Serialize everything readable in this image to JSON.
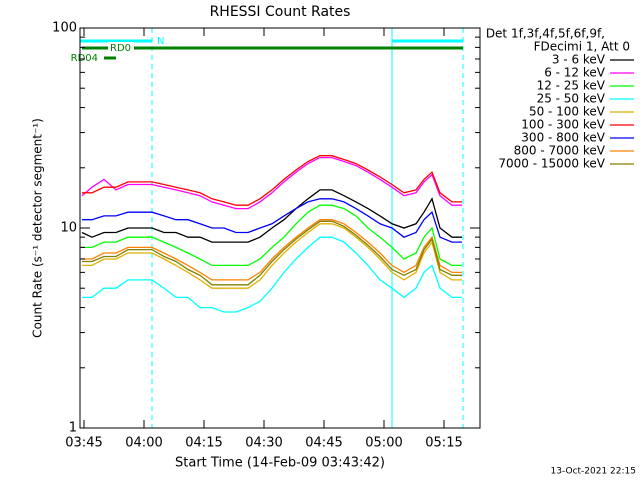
{
  "chart_data": {
    "type": "line",
    "title": "RHESSI Count Rates",
    "xlabel": "Start Time (14-Feb-09 03:43:42)",
    "ylabel": "Count Rate (s⁻¹ detector segment⁻¹)",
    "legend_title": [
      "Det 1f,3f,4f,5f,6f,9f,",
      "FDecimi 1, Att 0"
    ],
    "legend": "outside-right",
    "footer": "13-Oct-2021 22:15",
    "ylog": true,
    "xlim": [
      224,
      324
    ],
    "ylim": [
      1,
      100
    ],
    "yticks": [
      1,
      10,
      100
    ],
    "yminorticks": [
      2,
      3,
      4,
      5,
      6,
      7,
      8,
      9,
      20,
      30,
      40,
      50,
      60,
      70,
      80,
      90
    ],
    "xticks": [
      {
        "value": 225,
        "label": "03:45"
      },
      {
        "value": 240,
        "label": "04:00"
      },
      {
        "value": 255,
        "label": "04:15"
      },
      {
        "value": 270,
        "label": "04:30"
      },
      {
        "value": 285,
        "label": "04:45"
      },
      {
        "value": 300,
        "label": "05:00"
      },
      {
        "value": 315,
        "label": "05:15"
      }
    ],
    "x": [
      224.5,
      227,
      230,
      233,
      236,
      239,
      242,
      245,
      248,
      251,
      254,
      257,
      260,
      263,
      266,
      269,
      272,
      275,
      278,
      281,
      284,
      287,
      290,
      293,
      296,
      299,
      302,
      305,
      308,
      310,
      312,
      314,
      317,
      319.5
    ],
    "flags": [
      {
        "label": "N",
        "start": 224,
        "end": 242,
        "color": "#00ffff",
        "night": true
      },
      {
        "start": 302,
        "end": 319.75,
        "color": "#00ffff",
        "night": true
      },
      {
        "label": "RD0",
        "start": 224.5,
        "end": 319.75,
        "color": "#008000"
      },
      {
        "label": "RD04",
        "start": 230,
        "end": 233,
        "color": "#008000"
      }
    ],
    "series": [
      {
        "name": "3 - 6 keV",
        "color": "#000000",
        "values": [
          9.5,
          9,
          9.5,
          9.5,
          10,
          10,
          10,
          9.5,
          9.5,
          9,
          9,
          8.5,
          8.5,
          8.5,
          8.5,
          9,
          10,
          11,
          12.5,
          14,
          15.5,
          15.5,
          14.5,
          13.5,
          12.5,
          11.5,
          10.5,
          10,
          10.5,
          12,
          14,
          10,
          9,
          9
        ]
      },
      {
        "name": "6 - 12 keV",
        "color": "#ff00ff",
        "values": [
          14.5,
          16,
          17.5,
          15.5,
          16.5,
          16.5,
          16.5,
          16,
          15.5,
          15,
          14.5,
          13.5,
          13,
          12.5,
          12.5,
          13.5,
          15,
          17,
          19,
          21,
          22.5,
          22.5,
          21.5,
          20.5,
          19,
          17.5,
          16,
          14.5,
          15,
          17,
          18.5,
          14.5,
          13,
          13
        ]
      },
      {
        "name": "12 - 25 keV",
        "color": "#00ff00",
        "values": [
          8,
          8,
          8.5,
          8.5,
          9,
          9,
          9,
          8.5,
          8,
          7.5,
          7,
          6.5,
          6.5,
          6.5,
          6.5,
          7,
          8,
          9,
          10.5,
          12,
          13,
          13,
          12.5,
          11.5,
          10,
          9,
          8,
          7,
          7.5,
          9,
          10,
          7,
          6.5,
          6.5
        ]
      },
      {
        "name": "25 - 50 keV",
        "color": "#00ffff",
        "values": [
          4.5,
          4.5,
          5,
          5,
          5.5,
          5.5,
          5.5,
          5,
          4.5,
          4.5,
          4,
          4,
          3.8,
          3.8,
          4,
          4.3,
          5,
          6,
          7,
          8,
          9,
          9,
          8.5,
          7.5,
          6.5,
          5.5,
          5,
          4.5,
          5,
          6,
          6.5,
          5,
          4.5,
          4.5
        ]
      },
      {
        "name": "50 - 100 keV",
        "color": "#e0b000",
        "values": [
          6.5,
          6.5,
          7,
          7,
          7.5,
          7.5,
          7.5,
          7,
          6.5,
          6,
          5.5,
          5,
          5,
          5,
          5,
          5.5,
          6.5,
          7.5,
          8.5,
          9.5,
          10.5,
          10.5,
          10,
          9,
          8,
          7,
          6,
          5.5,
          6,
          7.5,
          8.5,
          6,
          5.5,
          5.5
        ]
      },
      {
        "name": "100 - 300 keV",
        "color": "#ff0000",
        "values": [
          15,
          15,
          16,
          16,
          17,
          17,
          17,
          16.5,
          16,
          15.5,
          15,
          14,
          13.5,
          13,
          13,
          14,
          15.5,
          17.5,
          19.5,
          21.5,
          23,
          23,
          22,
          21,
          19.5,
          18,
          16.5,
          15,
          15.5,
          17.5,
          19,
          15,
          13.5,
          13.5
        ]
      },
      {
        "name": "300 - 800 keV",
        "color": "#0000ff",
        "values": [
          11,
          11,
          11.5,
          11.5,
          12,
          12,
          12,
          11.5,
          11,
          11,
          10.5,
          10,
          10,
          9.5,
          9.5,
          10,
          10.5,
          11.5,
          12.5,
          13.5,
          14,
          14,
          13.5,
          12.5,
          11.5,
          10.5,
          10,
          9,
          9.5,
          11,
          12,
          9,
          8.5,
          8.5
        ]
      },
      {
        "name": "800 - 7000 keV",
        "color": "#ff8000",
        "values": [
          7,
          7,
          7.5,
          7.5,
          8,
          8,
          8,
          7.5,
          7,
          6.5,
          6,
          5.5,
          5.5,
          5.5,
          5.5,
          6,
          7,
          8,
          9,
          10,
          11,
          11,
          10.5,
          9.5,
          8.5,
          7.5,
          6.5,
          6,
          6.5,
          8,
          9,
          6.5,
          6,
          6
        ]
      },
      {
        "name": "7000 - 15000 keV",
        "color": "#808000",
        "values": [
          6.8,
          6.8,
          7.2,
          7.2,
          7.8,
          7.8,
          7.8,
          7.2,
          6.8,
          6.2,
          5.8,
          5.2,
          5.2,
          5.2,
          5.2,
          5.8,
          6.8,
          7.8,
          8.8,
          9.8,
          10.8,
          10.8,
          10.2,
          9.2,
          8.2,
          7.2,
          6.2,
          5.8,
          6.2,
          7.8,
          8.8,
          6.2,
          5.8,
          5.8
        ]
      }
    ]
  }
}
